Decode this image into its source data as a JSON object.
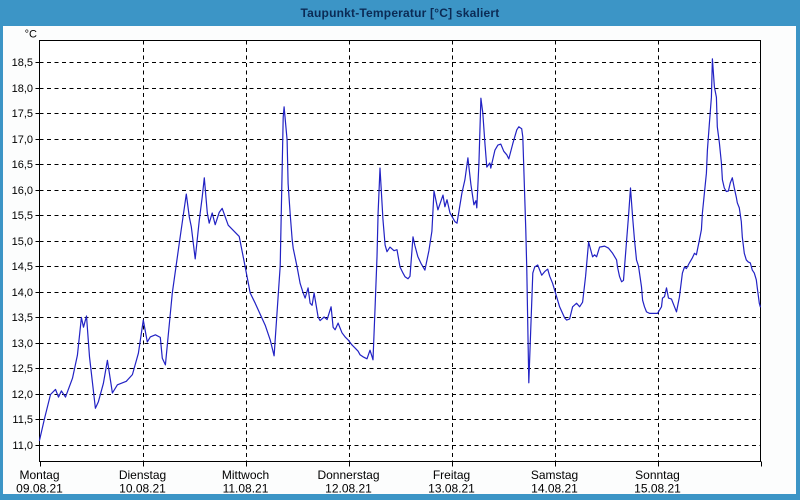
{
  "window": {
    "title": "Taupunkt-Temperatur [°C] skaliert"
  },
  "colors": {
    "titlebar_bg": "#3c95c6",
    "title_text": "#0b2b55",
    "border": "#3c95c6",
    "plot_bg": "#ffffff",
    "plot_border": "#000000",
    "grid": "#000000",
    "line": "#2222c4",
    "label_text": "#000000"
  },
  "chart_data": {
    "type": "line",
    "title": "Taupunkt-Temperatur [°C] skaliert",
    "legend": "none",
    "grid_style": "dashed",
    "y_axis": {
      "unit": "°C",
      "min": 11.0,
      "max": 18.5,
      "step": 0.5,
      "tick_labels": [
        "18,5",
        "18,0",
        "17,5",
        "17,0",
        "16,5",
        "16,0",
        "15,5",
        "15,0",
        "14,5",
        "14,0",
        "13,5",
        "13,0",
        "12,5",
        "12,0",
        "11,5",
        "11,0"
      ]
    },
    "x_axis": {
      "unit": "day",
      "range_days": [
        0,
        7
      ],
      "tick_days": [
        {
          "name": "Montag",
          "date": "09.08.21"
        },
        {
          "name": "Dienstag",
          "date": "10.08.21"
        },
        {
          "name": "Mittwoch",
          "date": "11.08.21"
        },
        {
          "name": "Donnerstag",
          "date": "12.08.21"
        },
        {
          "name": "Freitag",
          "date": "13.08.21"
        },
        {
          "name": "Samstag",
          "date": "14.08.21"
        },
        {
          "name": "Sonntag",
          "date": "15.08.21"
        }
      ]
    },
    "series": [
      {
        "name": "Taupunkt-Temperatur",
        "color": "#2222c4",
        "x": [
          0.0,
          0.048,
          0.107,
          0.155,
          0.184,
          0.213,
          0.252,
          0.32,
          0.368,
          0.407,
          0.427,
          0.456,
          0.485,
          0.543,
          0.572,
          0.62,
          0.659,
          0.708,
          0.756,
          0.843,
          0.902,
          0.96,
          1.008,
          1.047,
          1.076,
          1.125,
          1.173,
          1.192,
          1.222,
          1.289,
          1.357,
          1.425,
          1.454,
          1.474,
          1.512,
          1.551,
          1.58,
          1.6,
          1.629,
          1.648,
          1.677,
          1.706,
          1.745,
          1.774,
          1.832,
          1.881,
          1.939,
          1.997,
          2.046,
          2.094,
          2.123,
          2.191,
          2.24,
          2.278,
          2.337,
          2.366,
          2.375,
          2.404,
          2.414,
          2.433,
          2.453,
          2.463,
          2.501,
          2.53,
          2.56,
          2.579,
          2.608,
          2.627,
          2.647,
          2.666,
          2.705,
          2.724,
          2.763,
          2.792,
          2.831,
          2.85,
          2.87,
          2.899,
          2.937,
          2.967,
          2.996,
          3.035,
          3.064,
          3.093,
          3.112,
          3.141,
          3.18,
          3.209,
          3.229,
          3.238,
          3.258,
          3.277,
          3.287,
          3.306,
          3.335,
          3.355,
          3.374,
          3.403,
          3.442,
          3.471,
          3.5,
          3.529,
          3.549,
          3.578,
          3.597,
          3.626,
          3.645,
          3.674,
          3.704,
          3.742,
          3.781,
          3.81,
          3.83,
          3.868,
          3.917,
          3.936,
          3.956,
          3.985,
          4.033,
          4.053,
          4.101,
          4.13,
          4.159,
          4.188,
          4.217,
          4.237,
          4.246,
          4.266,
          4.285,
          4.304,
          4.324,
          4.343,
          4.372,
          4.382,
          4.421,
          4.45,
          4.479,
          4.508,
          4.537,
          4.556,
          4.595,
          4.634,
          4.653,
          4.682,
          4.692,
          4.721,
          4.731,
          4.75,
          4.789,
          4.808,
          4.837,
          4.876,
          4.905,
          4.934,
          4.953,
          4.982,
          5.021,
          5.05,
          5.099,
          5.118,
          5.147,
          5.176,
          5.215,
          5.244,
          5.273,
          5.302,
          5.331,
          5.37,
          5.389,
          5.409,
          5.438,
          5.486,
          5.525,
          5.564,
          5.603,
          5.612,
          5.632,
          5.651,
          5.67,
          5.7,
          5.719,
          5.738,
          5.758,
          5.777,
          5.796,
          5.816,
          5.845,
          5.855,
          5.874,
          5.893,
          5.922,
          5.961,
          6.0,
          6.039,
          6.049,
          6.068,
          6.087,
          6.107,
          6.136,
          6.165,
          6.184,
          6.213,
          6.242,
          6.262,
          6.281,
          6.31,
          6.339,
          6.359,
          6.378,
          6.407,
          6.426,
          6.436,
          6.455,
          6.475,
          6.484,
          6.504,
          6.523,
          6.533,
          6.552,
          6.572,
          6.581,
          6.601,
          6.62,
          6.63,
          6.649,
          6.668,
          6.688,
          6.707,
          6.726,
          6.746,
          6.765,
          6.775,
          6.794,
          6.814,
          6.823,
          6.843,
          6.862,
          6.881,
          6.901,
          6.92,
          6.94,
          6.959,
          6.969,
          6.988,
          6.998
        ],
        "y": [
          11.08,
          11.5,
          11.98,
          12.08,
          11.93,
          12.05,
          11.93,
          12.3,
          12.75,
          13.49,
          13.3,
          13.52,
          12.72,
          11.71,
          11.84,
          12.2,
          12.65,
          12.01,
          12.17,
          12.24,
          12.37,
          12.79,
          13.44,
          13.01,
          13.11,
          13.15,
          13.1,
          12.69,
          12.56,
          13.97,
          14.95,
          15.91,
          15.46,
          15.27,
          14.64,
          15.4,
          15.85,
          16.23,
          15.54,
          15.34,
          15.54,
          15.31,
          15.55,
          15.63,
          15.3,
          15.2,
          15.08,
          14.48,
          13.97,
          13.77,
          13.64,
          13.34,
          13.05,
          12.74,
          14.5,
          17.42,
          17.62,
          16.97,
          16.12,
          15.54,
          15.01,
          14.85,
          14.48,
          14.16,
          13.97,
          13.87,
          14.07,
          13.77,
          13.73,
          13.97,
          13.5,
          13.43,
          13.5,
          13.45,
          13.7,
          13.3,
          13.25,
          13.38,
          13.19,
          13.11,
          13.05,
          12.95,
          12.89,
          12.83,
          12.76,
          12.72,
          12.68,
          12.85,
          12.72,
          12.66,
          13.7,
          14.68,
          15.54,
          16.42,
          15.4,
          14.91,
          14.78,
          14.87,
          14.8,
          14.82,
          14.48,
          14.36,
          14.29,
          14.25,
          14.3,
          15.07,
          14.9,
          14.68,
          14.55,
          14.42,
          14.8,
          15.18,
          15.97,
          15.6,
          15.89,
          15.66,
          15.8,
          15.54,
          15.37,
          15.34,
          15.93,
          16.19,
          16.62,
          16.1,
          15.7,
          15.78,
          15.64,
          16.5,
          17.79,
          17.5,
          16.91,
          16.44,
          16.52,
          16.42,
          16.77,
          16.87,
          16.89,
          16.75,
          16.68,
          16.6,
          16.9,
          17.17,
          17.23,
          17.19,
          17.03,
          15.2,
          14.42,
          12.21,
          14.36,
          14.48,
          14.52,
          14.32,
          14.39,
          14.44,
          14.3,
          14.16,
          13.89,
          13.7,
          13.48,
          13.44,
          13.46,
          13.7,
          13.77,
          13.7,
          13.79,
          14.3,
          14.97,
          14.68,
          14.72,
          14.68,
          14.87,
          14.89,
          14.85,
          14.75,
          14.62,
          14.48,
          14.29,
          14.19,
          14.22,
          15.0,
          15.5,
          16.03,
          15.46,
          15.01,
          14.62,
          14.5,
          14.09,
          13.83,
          13.7,
          13.6,
          13.57,
          13.57,
          13.57,
          13.7,
          13.87,
          13.9,
          14.07,
          13.87,
          13.85,
          13.7,
          13.6,
          13.89,
          14.36,
          14.48,
          14.45,
          14.56,
          14.66,
          14.75,
          14.72,
          15.01,
          15.21,
          15.54,
          15.93,
          16.32,
          16.77,
          17.3,
          17.81,
          18.56,
          18.01,
          17.81,
          17.23,
          16.91,
          16.52,
          16.19,
          16.03,
          15.96,
          15.97,
          16.13,
          16.23,
          16.03,
          15.85,
          15.74,
          15.64,
          15.37,
          15.07,
          14.75,
          14.62,
          14.58,
          14.56,
          14.42,
          14.36,
          14.23,
          14.07,
          13.77,
          13.7
        ]
      }
    ]
  }
}
